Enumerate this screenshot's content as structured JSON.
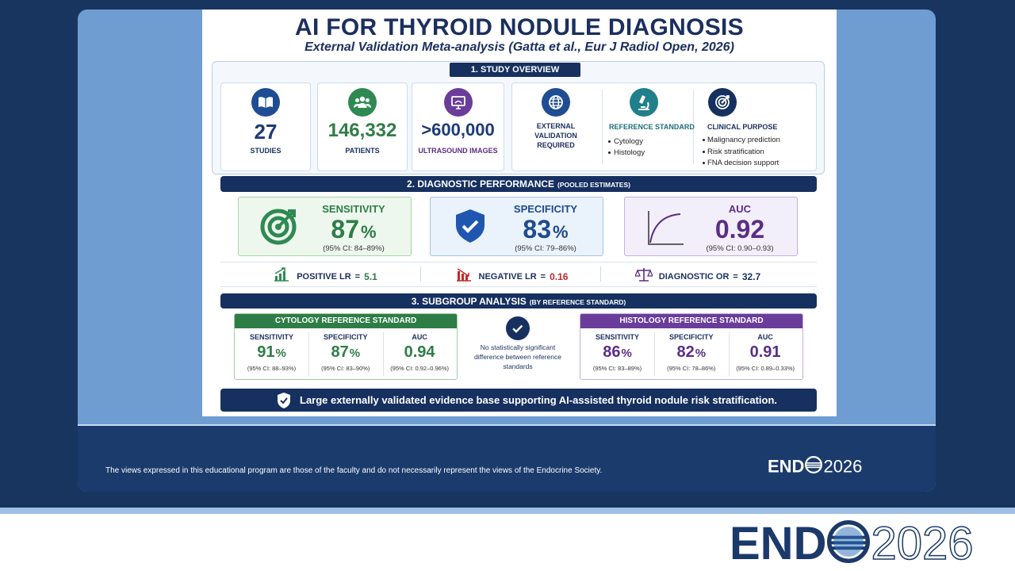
{
  "header": {
    "title": "AI FOR THYROID NODULE DIAGNOSIS",
    "subtitle": "External Validation Meta-analysis (Gatta et al., Eur J Radiol Open, 2026)"
  },
  "overview": {
    "heading": "1. STUDY OVERVIEW",
    "stats": [
      {
        "value": "27",
        "label": "STUDIES"
      },
      {
        "value": "146,332",
        "label": "PATIENTS"
      },
      {
        "value": ">600,000",
        "label": "ULTRASOUND IMAGES"
      }
    ],
    "validation": "EXTERNAL VALIDATION REQUIRED",
    "reference": {
      "title": "REFERENCE STANDARD",
      "items": [
        "Cytology",
        "Histology"
      ]
    },
    "purpose": {
      "title": "CLINICAL PURPOSE",
      "items": [
        "Malignancy prediction",
        "Risk stratification",
        "FNA decision support"
      ]
    }
  },
  "performance": {
    "heading": "2. DIAGNOSTIC PERFORMANCE",
    "note": "(POOLED ESTIMATES)",
    "metrics": [
      {
        "label": "SENSITIVITY",
        "value": "87",
        "unit": "%",
        "ci": "(95% CI: 84–89%)"
      },
      {
        "label": "SPECIFICITY",
        "value": "83",
        "unit": "%",
        "ci": "(95% CI: 79–86%)"
      },
      {
        "label": "AUC",
        "value": "0.92",
        "ci": "(95% CI: 0.90–0.93)"
      }
    ],
    "ratios": [
      {
        "label": "POSITIVE LR",
        "sign": "=",
        "value": "5.1"
      },
      {
        "label": "NEGATIVE LR",
        "sign": "=",
        "value": "0.16"
      },
      {
        "label": "DIAGNOSTIC OR",
        "sign": "=",
        "value": "32.7"
      }
    ]
  },
  "subgroups": {
    "heading": "3. SUBGROUP ANALYSIS",
    "note": "(BY REFERENCE STANDARD)",
    "groups": [
      {
        "title": "CYTOLOGY REFERENCE STANDARD",
        "metrics": [
          {
            "label": "SENSITIVITY",
            "value": "91",
            "unit": "%",
            "ci": "(95% CI: 88–93%)"
          },
          {
            "label": "SPECIFICITY",
            "value": "87",
            "unit": "%",
            "ci": "(95% CI: 83–90%)"
          },
          {
            "label": "AUC",
            "value": "0.94",
            "ci": "(95% CI: 0.92–0.96%)"
          }
        ]
      },
      {
        "title": "HISTOLOGY REFERENCE STANDARD",
        "metrics": [
          {
            "label": "SENSITIVITY",
            "value": "86",
            "unit": "%",
            "ci": "(95% CI: 83–89%)"
          },
          {
            "label": "SPECIFICITY",
            "value": "82",
            "unit": "%",
            "ci": "(95% CI: 78–86%)"
          },
          {
            "label": "AUC",
            "value": "0.91",
            "ci": "(95% CI: 0.89–0.33%)"
          }
        ]
      }
    ],
    "comparison": "No statistically significant difference between reference standards"
  },
  "conclusion": "Large externally validated evidence base supporting AI-assisted thyroid nodule risk stratification.",
  "footer": {
    "disclaimer": "The views expressed in this educational program are those of the faculty and do not necessarily represent the views of the Endocrine Society.",
    "logo": {
      "left": "END",
      "right": "2026"
    }
  },
  "brand": {
    "logo": {
      "left": "END",
      "right": "2026"
    }
  }
}
